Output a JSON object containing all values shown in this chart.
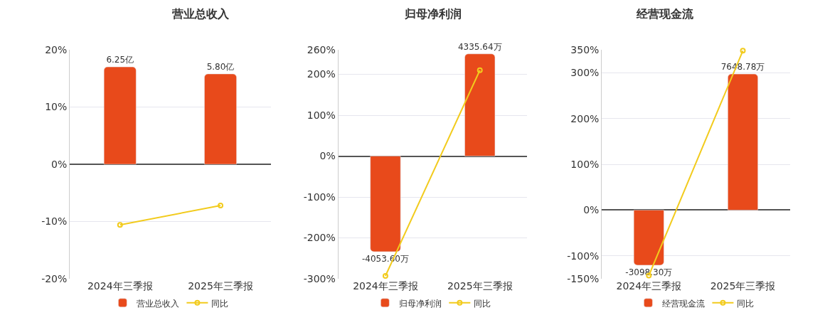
{
  "chart_data": [
    {
      "type": "bar",
      "title": "营业总收入",
      "categories": [
        "2024年三季报",
        "2025年三季报"
      ],
      "series": [
        {
          "name": "营业总收入",
          "axis": "y2",
          "color": "#e84a1b",
          "values": [
            6.25,
            5.8
          ],
          "value_labels": [
            "6.25亿",
            "5.80亿"
          ]
        },
        {
          "name": "同比",
          "type": "line",
          "color": "#f2cb1d",
          "values": [
            -10.6,
            -7.2
          ]
        }
      ],
      "ylim": [
        -20,
        20
      ],
      "yticks": [
        {
          "value": -20,
          "label": "-20%"
        },
        {
          "value": -10,
          "label": "-10%"
        },
        {
          "value": 0,
          "label": "0%"
        },
        {
          "value": 10,
          "label": "10%"
        },
        {
          "value": 20,
          "label": "20%"
        }
      ],
      "y2lim": [
        -7.35,
        7.35
      ],
      "grid": "y",
      "legend": "bottom",
      "marker": "circle",
      "line_style": "solid"
    },
    {
      "type": "bar",
      "title": "归母净利润",
      "categories": [
        "2024年三季报",
        "2025年三季报"
      ],
      "series": [
        {
          "name": "归母净利润",
          "axis": "y2",
          "color": "#e84a1b",
          "values": [
            -4053.6,
            4335.64
          ],
          "value_labels": [
            "-4053.60万",
            "4335.64万"
          ]
        },
        {
          "name": "同比",
          "type": "line",
          "color": "#f2cb1d",
          "values": [
            -293,
            210
          ]
        }
      ],
      "ylim": [
        -300,
        260
      ],
      "yticks": [
        {
          "value": -300,
          "label": "-300%"
        },
        {
          "value": -200,
          "label": "-200%"
        },
        {
          "value": -100,
          "label": "-100%"
        },
        {
          "value": 0,
          "label": "0%"
        },
        {
          "value": 100,
          "label": "100%"
        },
        {
          "value": 200,
          "label": "200%"
        },
        {
          "value": 260,
          "label": "260%"
        }
      ],
      "y2lim": [
        -5203,
        4509
      ],
      "grid": "y",
      "legend": "bottom",
      "marker": "circle",
      "line_style": "solid"
    },
    {
      "type": "bar",
      "title": "经营现金流",
      "categories": [
        "2024年三季报",
        "2025年三季报"
      ],
      "series": [
        {
          "name": "经营现金流",
          "axis": "y2",
          "color": "#e84a1b",
          "values": [
            -3098.3,
            7648.78
          ],
          "value_labels": [
            "-3098.30万",
            "7648.78万"
          ]
        },
        {
          "name": "同比",
          "type": "line",
          "color": "#f2cb1d",
          "values": [
            -143,
            348
          ]
        }
      ],
      "ylim": [
        -150,
        350
      ],
      "yticks": [
        {
          "value": -150,
          "label": "-150%"
        },
        {
          "value": -100,
          "label": "-100%"
        },
        {
          "value": 0,
          "label": "0%"
        },
        {
          "value": 100,
          "label": "100%"
        },
        {
          "value": 200,
          "label": "200%"
        },
        {
          "value": 300,
          "label": "300%"
        },
        {
          "value": 350,
          "label": "350%"
        }
      ],
      "y2lim": [
        -3863,
        9013
      ],
      "grid": "y",
      "legend": "bottom",
      "marker": "circle",
      "line_style": "solid"
    }
  ]
}
